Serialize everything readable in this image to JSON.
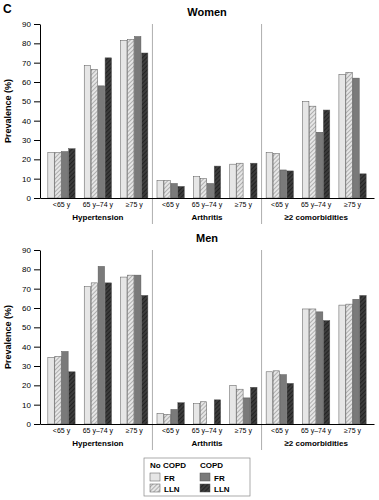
{
  "figure_label": "C",
  "chart_data": [
    {
      "type": "bar",
      "title": "Women",
      "y_label": "Prevalence (%)",
      "categories": [
        "<65 y",
        "65 y–74 y",
        "≥75 y",
        "<65 y",
        "65 y–74 y",
        "≥75 y",
        "<65 y",
        "65 y–74 y",
        "≥75 y"
      ],
      "groups": [
        "Hypertension",
        "Arthritis",
        "≥2 comorbidities"
      ],
      "ylim": [
        0,
        90
      ],
      "yticks": [
        0,
        10,
        20,
        30,
        40,
        50,
        60,
        70,
        80,
        90
      ],
      "series": [
        {
          "name": "FR",
          "group": "No COPD",
          "color": "#e6e6e6",
          "marker": "solid",
          "values": [
            23.5,
            68.5,
            81.5,
            9,
            11,
            17.5,
            23.5,
            50,
            64
          ]
        },
        {
          "name": "LLN",
          "group": "No COPD",
          "color": "#e6e6e6",
          "marker": "hatched",
          "values": [
            23.5,
            66.5,
            82,
            9,
            10,
            18,
            23,
            47.5,
            65
          ]
        },
        {
          "name": "FR",
          "group": "COPD",
          "color": "#7a7a7a",
          "marker": "solid",
          "values": [
            24,
            58,
            83.5,
            7.5,
            7.5,
            null,
            14.5,
            34,
            62
          ]
        },
        {
          "name": "LLN",
          "group": "COPD",
          "color": "#3c3c3c",
          "marker": "hatched",
          "values": [
            25.5,
            72.5,
            75,
            6,
            16.5,
            18,
            14,
            45.5,
            12.5
          ]
        }
      ]
    },
    {
      "type": "bar",
      "title": "Men",
      "y_label": "Prevalence (%)",
      "categories": [
        "<65 y",
        "65 y–74 y",
        "≥75 y",
        "<65 y",
        "65 y–74 y",
        "≥75 y",
        "<65 y",
        "65 y–74 y",
        "≥75 y"
      ],
      "groups": [
        "Hypertension",
        "Arthritis",
        "≥2 comorbidities"
      ],
      "ylim": [
        0,
        90
      ],
      "yticks": [
        0,
        10,
        20,
        30,
        40,
        50,
        60,
        70,
        80,
        90
      ],
      "series": [
        {
          "name": "FR",
          "group": "No COPD",
          "color": "#e6e6e6",
          "marker": "solid",
          "values": [
            34.5,
            71,
            76,
            5.5,
            10.5,
            20,
            27,
            59.5,
            61.5
          ]
        },
        {
          "name": "LLN",
          "group": "No COPD",
          "color": "#e6e6e6",
          "marker": "hatched",
          "values": [
            35,
            73,
            77,
            5,
            11.5,
            18,
            27.5,
            59.5,
            62
          ]
        },
        {
          "name": "FR",
          "group": "COPD",
          "color": "#7a7a7a",
          "marker": "solid",
          "values": [
            37.5,
            81.5,
            77,
            7.5,
            null,
            13.5,
            25.5,
            58,
            64.5
          ]
        },
        {
          "name": "LLN",
          "group": "COPD",
          "color": "#3c3c3c",
          "marker": "hatched",
          "values": [
            27,
            73,
            66.5,
            11,
            12.5,
            19,
            21,
            53.5,
            66.5
          ]
        }
      ]
    }
  ]
}
